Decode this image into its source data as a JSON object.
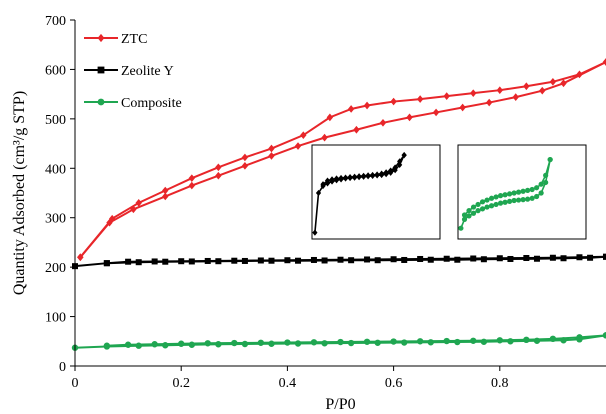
{
  "chart_data": {
    "type": "line",
    "xlabel": "P/P0",
    "ylabel": "Quantity Adsorbed (cm³/g STP)",
    "xlim": [
      0,
      1
    ],
    "ylim": [
      0,
      700
    ],
    "x_ticks": [
      0,
      0.2,
      0.4,
      0.6,
      0.8
    ],
    "x_tick_labels": [
      "0",
      "0.2",
      "0.4",
      "0.6",
      "0.8"
    ],
    "y_ticks": [
      0,
      100,
      200,
      300,
      400,
      500,
      600,
      700
    ],
    "y_tick_labels": [
      "0",
      "100",
      "200",
      "300",
      "400",
      "500",
      "600",
      "700"
    ],
    "grid": false,
    "legend_placement": "top-left",
    "series": [
      {
        "name": "ZTC",
        "color": "#e8262a",
        "marker": "diamond",
        "adsorption": {
          "x": [
            0.01,
            0.065,
            0.11,
            0.17,
            0.22,
            0.27,
            0.32,
            0.37,
            0.42,
            0.47,
            0.53,
            0.58,
            0.63,
            0.68,
            0.73,
            0.78,
            0.83,
            0.88,
            0.92,
            1.0
          ],
          "y": [
            220,
            290,
            317,
            343,
            365,
            385,
            405,
            425,
            445,
            462,
            478,
            492,
            503,
            513,
            523,
            533,
            544,
            557,
            572,
            615
          ]
        },
        "desorption": {
          "x": [
            1.0,
            0.95,
            0.9,
            0.85,
            0.8,
            0.75,
            0.7,
            0.65,
            0.6,
            0.55,
            0.52,
            0.48,
            0.43,
            0.37,
            0.32,
            0.27,
            0.22,
            0.17,
            0.12,
            0.07,
            0.01
          ],
          "y": [
            615,
            590,
            575,
            566,
            558,
            552,
            546,
            540,
            535,
            527,
            520,
            503,
            467,
            440,
            422,
            402,
            380,
            355,
            330,
            298,
            220
          ]
        }
      },
      {
        "name": "Zeolite Y",
        "color": "#000000",
        "marker": "square",
        "adsorption": {
          "x": [
            0.0,
            0.06,
            0.12,
            0.17,
            0.22,
            0.27,
            0.32,
            0.37,
            0.42,
            0.47,
            0.52,
            0.57,
            0.62,
            0.67,
            0.72,
            0.77,
            0.82,
            0.87,
            0.92,
            0.97,
            1.0
          ],
          "y": [
            202,
            208,
            210,
            211,
            211.5,
            212,
            212.5,
            213,
            213,
            213.5,
            214,
            214,
            214.5,
            215,
            215,
            216,
            216.5,
            217,
            218,
            219,
            221
          ]
        },
        "desorption": {
          "x": [
            1.0,
            0.95,
            0.9,
            0.85,
            0.8,
            0.75,
            0.7,
            0.65,
            0.6,
            0.55,
            0.5,
            0.45,
            0.4,
            0.35,
            0.3,
            0.25,
            0.2,
            0.15,
            0.1,
            0.06
          ],
          "y": [
            221,
            220,
            219,
            218.5,
            218,
            217.5,
            217,
            216.5,
            216,
            215.5,
            215,
            214.5,
            214,
            213.5,
            213,
            212.5,
            212,
            211.5,
            211,
            208
          ]
        }
      },
      {
        "name": "Composite",
        "color": "#1fa651",
        "marker": "circle",
        "adsorption": {
          "x": [
            0.0,
            0.06,
            0.12,
            0.17,
            0.22,
            0.27,
            0.32,
            0.37,
            0.42,
            0.47,
            0.52,
            0.57,
            0.62,
            0.67,
            0.72,
            0.77,
            0.82,
            0.87,
            0.92,
            0.95,
            1.0
          ],
          "y": [
            37,
            39.5,
            41,
            42,
            43,
            44,
            44.5,
            45,
            45.5,
            46,
            46.5,
            47,
            47.5,
            48,
            48.5,
            49,
            50,
            51,
            52,
            54,
            62
          ]
        },
        "desorption": {
          "x": [
            1.0,
            0.95,
            0.9,
            0.85,
            0.8,
            0.75,
            0.7,
            0.65,
            0.6,
            0.55,
            0.5,
            0.45,
            0.4,
            0.35,
            0.3,
            0.25,
            0.2,
            0.15,
            0.1,
            0.06
          ],
          "y": [
            62,
            58,
            55,
            53,
            52,
            51,
            50.5,
            50,
            49.5,
            49,
            48.5,
            48,
            47.5,
            47,
            46.5,
            46,
            45,
            44,
            43,
            41
          ]
        }
      }
    ],
    "insets": [
      {
        "series": "Zeolite Y",
        "color": "#000000",
        "marker": "diamond",
        "adsorption": {
          "x": [
            0.01,
            0.05,
            0.1,
            0.15,
            0.2,
            0.25,
            0.3,
            0.35,
            0.4,
            0.45,
            0.5,
            0.55,
            0.6,
            0.65,
            0.7,
            0.75,
            0.8,
            0.85,
            0.9,
            0.95,
            1.0
          ],
          "y": [
            0.05,
            0.5,
            0.58,
            0.61,
            0.63,
            0.645,
            0.655,
            0.665,
            0.67,
            0.675,
            0.68,
            0.685,
            0.69,
            0.695,
            0.7,
            0.705,
            0.715,
            0.73,
            0.76,
            0.82,
            0.93
          ]
        },
        "desorption": {
          "x": [
            1.0,
            0.95,
            0.9,
            0.85,
            0.8,
            0.75,
            0.7,
            0.65,
            0.6,
            0.55,
            0.5,
            0.45,
            0.4,
            0.35,
            0.3,
            0.25,
            0.2,
            0.15,
            0.1
          ],
          "y": [
            0.93,
            0.86,
            0.79,
            0.755,
            0.735,
            0.72,
            0.71,
            0.705,
            0.7,
            0.695,
            0.69,
            0.685,
            0.68,
            0.675,
            0.67,
            0.665,
            0.655,
            0.64,
            0.6
          ]
        }
      },
      {
        "series": "Composite",
        "color": "#1fa651",
        "marker": "circle",
        "adsorption": {
          "x": [
            0.01,
            0.05,
            0.1,
            0.15,
            0.2,
            0.25,
            0.3,
            0.35,
            0.4,
            0.45,
            0.5,
            0.55,
            0.6,
            0.65,
            0.7,
            0.75,
            0.8,
            0.85,
            0.9,
            0.95,
            1.0
          ],
          "y": [
            0.1,
            0.2,
            0.24,
            0.27,
            0.3,
            0.32,
            0.34,
            0.355,
            0.37,
            0.385,
            0.395,
            0.405,
            0.415,
            0.42,
            0.425,
            0.43,
            0.44,
            0.46,
            0.5,
            0.62,
            0.88
          ]
        },
        "desorption": {
          "x": [
            1.0,
            0.95,
            0.9,
            0.85,
            0.8,
            0.75,
            0.7,
            0.65,
            0.6,
            0.55,
            0.5,
            0.45,
            0.4,
            0.35,
            0.3,
            0.25,
            0.2,
            0.15,
            0.1,
            0.05
          ],
          "y": [
            0.88,
            0.7,
            0.6,
            0.56,
            0.54,
            0.53,
            0.52,
            0.51,
            0.5,
            0.49,
            0.48,
            0.47,
            0.455,
            0.44,
            0.42,
            0.4,
            0.37,
            0.34,
            0.3,
            0.25
          ]
        }
      }
    ]
  }
}
